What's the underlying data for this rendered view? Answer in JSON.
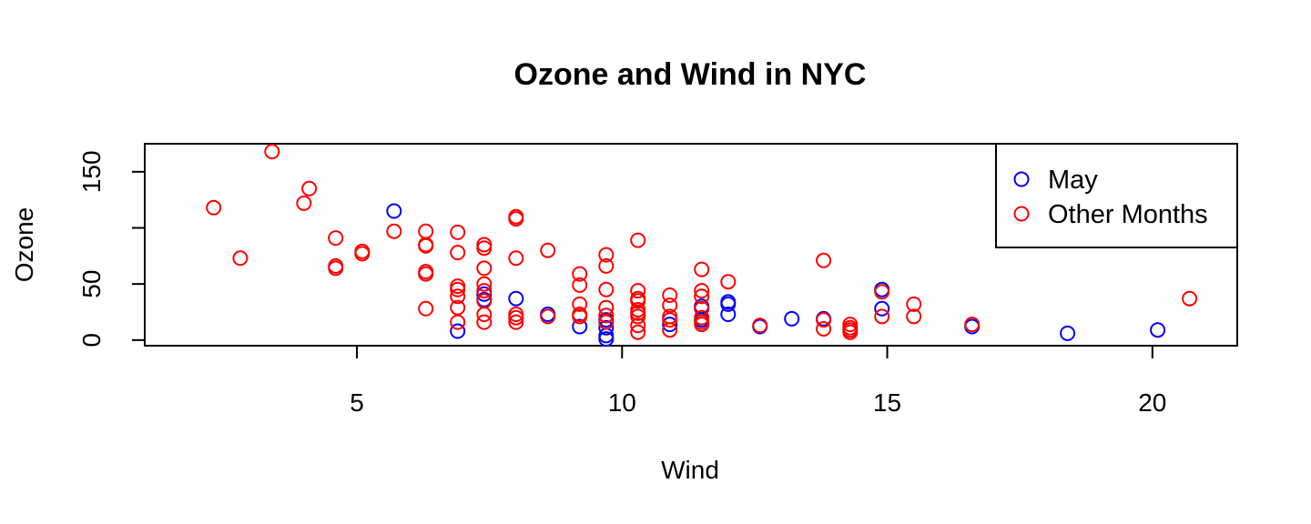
{
  "chart_data": {
    "type": "scatter",
    "title": "Ozone and Wind in NYC",
    "xlabel": "Wind",
    "ylabel": "Ozone",
    "xlim": [
      1.0,
      21.6
    ],
    "ylim": [
      -5,
      175
    ],
    "xticks": [
      5,
      10,
      15,
      20
    ],
    "yticks": [
      0,
      50,
      100,
      150
    ],
    "ytick_labels": [
      "0",
      "50",
      "",
      "150"
    ],
    "grid": false,
    "legend_position": "top-right",
    "marker": "open-circle",
    "series": [
      {
        "name": "May",
        "color": "#0000ff",
        "points": [
          [
            5.7,
            115
          ],
          [
            6.9,
            8
          ],
          [
            7.4,
            36
          ],
          [
            7.4,
            41
          ],
          [
            8.0,
            37
          ],
          [
            8.6,
            23
          ],
          [
            9.2,
            12
          ],
          [
            9.7,
            1
          ],
          [
            9.7,
            4
          ],
          [
            9.7,
            11
          ],
          [
            9.7,
            18
          ],
          [
            10.9,
            14
          ],
          [
            11.5,
            18
          ],
          [
            11.5,
            30
          ],
          [
            12.0,
            32
          ],
          [
            12.0,
            34
          ],
          [
            12.0,
            23
          ],
          [
            12.6,
            12
          ],
          [
            13.2,
            19
          ],
          [
            13.8,
            19
          ],
          [
            14.9,
            28
          ],
          [
            14.9,
            45
          ],
          [
            16.6,
            12
          ],
          [
            18.4,
            6
          ],
          [
            20.1,
            9
          ]
        ]
      },
      {
        "name": "Other Months",
        "color": "#ff0000",
        "points": [
          [
            2.3,
            118
          ],
          [
            2.8,
            73
          ],
          [
            3.4,
            168
          ],
          [
            4.0,
            122
          ],
          [
            4.1,
            135
          ],
          [
            4.6,
            91
          ],
          [
            4.6,
            64
          ],
          [
            4.6,
            66
          ],
          [
            5.1,
            79
          ],
          [
            5.1,
            77
          ],
          [
            5.7,
            97
          ],
          [
            6.3,
            97
          ],
          [
            6.3,
            85
          ],
          [
            6.3,
            84
          ],
          [
            6.3,
            61
          ],
          [
            6.3,
            59
          ],
          [
            6.3,
            28
          ],
          [
            6.9,
            96
          ],
          [
            6.9,
            78
          ],
          [
            6.9,
            48
          ],
          [
            6.9,
            45
          ],
          [
            6.9,
            39
          ],
          [
            6.9,
            29
          ],
          [
            6.9,
            16
          ],
          [
            7.4,
            85
          ],
          [
            7.4,
            82
          ],
          [
            7.4,
            64
          ],
          [
            7.4,
            50
          ],
          [
            7.4,
            44
          ],
          [
            7.4,
            35
          ],
          [
            7.4,
            23
          ],
          [
            7.4,
            16
          ],
          [
            8.0,
            108
          ],
          [
            8.0,
            110
          ],
          [
            8.0,
            73
          ],
          [
            8.0,
            23
          ],
          [
            8.0,
            20
          ],
          [
            8.0,
            16
          ],
          [
            8.6,
            80
          ],
          [
            8.6,
            21
          ],
          [
            9.2,
            59
          ],
          [
            9.2,
            49
          ],
          [
            9.2,
            32
          ],
          [
            9.2,
            23
          ],
          [
            9.2,
            21
          ],
          [
            9.7,
            76
          ],
          [
            9.7,
            66
          ],
          [
            9.7,
            45
          ],
          [
            9.7,
            29
          ],
          [
            9.7,
            22
          ],
          [
            9.7,
            16
          ],
          [
            10.3,
            89
          ],
          [
            10.3,
            44
          ],
          [
            10.3,
            37
          ],
          [
            10.3,
            35
          ],
          [
            10.3,
            27
          ],
          [
            10.3,
            24
          ],
          [
            10.3,
            21
          ],
          [
            10.3,
            13
          ],
          [
            10.3,
            7
          ],
          [
            10.9,
            40
          ],
          [
            10.9,
            31
          ],
          [
            10.9,
            21
          ],
          [
            10.9,
            18
          ],
          [
            10.9,
            9
          ],
          [
            11.5,
            63
          ],
          [
            11.5,
            44
          ],
          [
            11.5,
            39
          ],
          [
            11.5,
            28
          ],
          [
            11.5,
            20
          ],
          [
            11.5,
            16
          ],
          [
            11.5,
            14
          ],
          [
            12.0,
            52
          ],
          [
            12.6,
            13
          ],
          [
            13.8,
            71
          ],
          [
            13.8,
            18
          ],
          [
            13.8,
            10
          ],
          [
            14.3,
            14
          ],
          [
            14.3,
            11
          ],
          [
            14.3,
            9
          ],
          [
            14.3,
            7
          ],
          [
            14.9,
            43
          ],
          [
            14.9,
            21
          ],
          [
            15.5,
            32
          ],
          [
            15.5,
            21
          ],
          [
            16.6,
            14
          ],
          [
            20.7,
            37
          ]
        ]
      }
    ]
  }
}
